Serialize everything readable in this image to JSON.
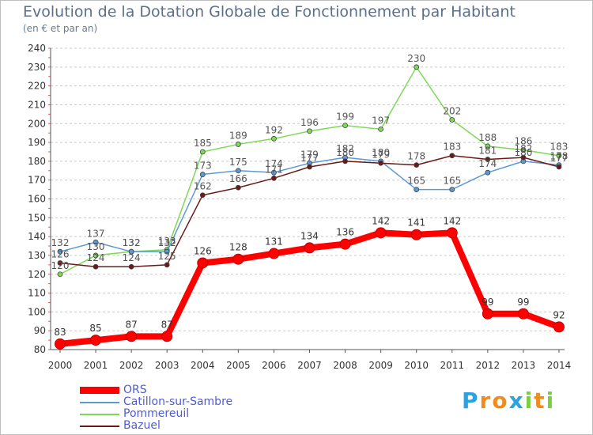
{
  "chart_data": {
    "type": "line",
    "title": "Evolution de la Dotation Globale de Fonctionnement par Habitant",
    "subtitle": "(en € et par an)",
    "xlabel": "",
    "ylabel": "",
    "ylim": [
      80,
      240
    ],
    "y_ticks": [
      80,
      90,
      100,
      110,
      120,
      130,
      140,
      150,
      160,
      170,
      180,
      190,
      200,
      210,
      220,
      230,
      240
    ],
    "categories": [
      "2000",
      "2001",
      "2002",
      "2003",
      "2004",
      "2005",
      "2006",
      "2007",
      "2008",
      "2009",
      "2010",
      "2011",
      "2012",
      "2013",
      "2014"
    ],
    "grid": "horizontal dashed",
    "legend_position": "bottom-left",
    "series": [
      {
        "name": "ORS",
        "color": "#ff0000",
        "values": [
          83,
          85,
          87,
          87,
          126,
          128,
          131,
          134,
          136,
          142,
          141,
          142,
          99,
          99,
          92
        ]
      },
      {
        "name": "Catillon-sur-Sambre",
        "color": "#5b9bd5",
        "values": [
          132,
          137,
          132,
          132,
          173,
          175,
          174,
          179,
          182,
          180,
          165,
          165,
          174,
          180,
          178
        ]
      },
      {
        "name": "Pommereuil",
        "color": "#7ed957",
        "values": [
          120,
          130,
          132,
          133,
          185,
          189,
          192,
          196,
          199,
          197,
          230,
          202,
          188,
          186,
          183
        ]
      },
      {
        "name": "Bazuel",
        "color": "#6b1a1a",
        "values": [
          126,
          124,
          124,
          125,
          162,
          166,
          171,
          177,
          180,
          179,
          178,
          183,
          181,
          182,
          177
        ]
      }
    ],
    "data_labels": [
      {
        "series": "ORS",
        "values": [
          "83",
          "85",
          "87",
          "87",
          "126",
          "128",
          "131",
          "134",
          "136",
          "142",
          "141",
          "142",
          "99",
          "99",
          "92"
        ]
      },
      {
        "series": "Catillon-sur-Sambre",
        "values": [
          "132",
          "137",
          "132",
          "132",
          "173",
          "175",
          "174",
          "179",
          "182",
          "180",
          "165",
          "165",
          "174",
          "180",
          "178"
        ]
      },
      {
        "series": "Pommereuil",
        "values": [
          "120",
          "130",
          "132",
          "133",
          "185",
          "189",
          "192",
          "196",
          "199",
          "197",
          "230",
          "202",
          "188",
          "186",
          "183"
        ]
      },
      {
        "series": "Bazuel",
        "values": [
          "126",
          "124",
          "124",
          "125",
          "162",
          "166",
          "171",
          "177",
          "180",
          "179",
          "178",
          "183",
          "181",
          "182",
          "177"
        ]
      }
    ]
  },
  "legend": {
    "items": [
      {
        "label": "ORS",
        "color": "#ff0000"
      },
      {
        "label": "Catillon-sur-Sambre",
        "color": "#5b9bd5"
      },
      {
        "label": "Pommereuil",
        "color": "#7ed957"
      },
      {
        "label": "Bazuel",
        "color": "#6b1a1a"
      }
    ]
  },
  "brand": {
    "letters": [
      "P",
      "r",
      "o",
      "x",
      "i",
      "t",
      "i"
    ],
    "colors": [
      "#2aa3e0",
      "#f08c1c",
      "#f08c1c",
      "#2aa3e0",
      "#7ccf3c",
      "#f08c1c",
      "#7ccf3c"
    ]
  }
}
